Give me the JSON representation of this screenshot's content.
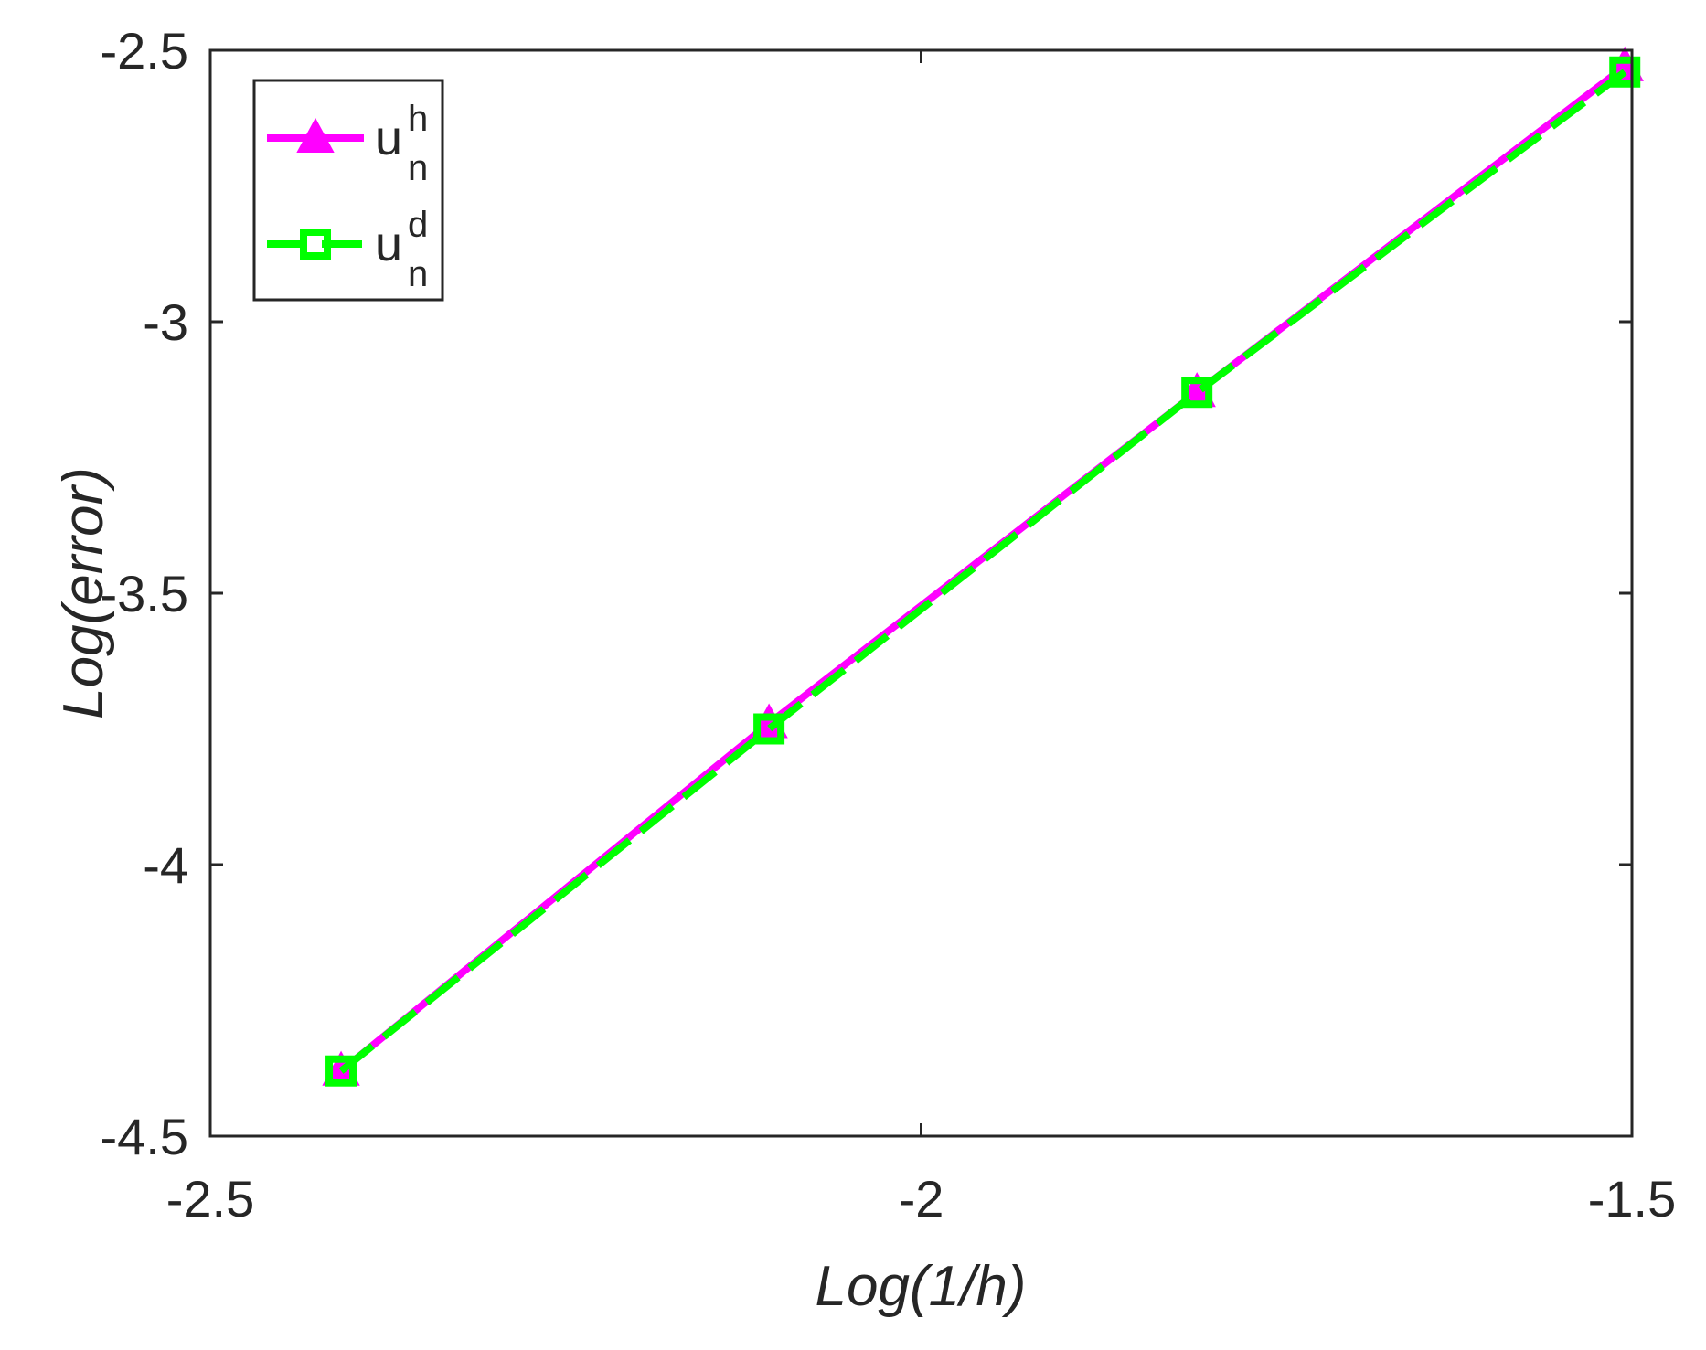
{
  "chart_data": {
    "type": "line",
    "title": "",
    "xlabel": "Log(1/h)",
    "ylabel": "Log(error)",
    "xlim": [
      -2.5,
      -1.5
    ],
    "ylim": [
      -4.5,
      -2.5
    ],
    "xticks": [
      -2.5,
      -2,
      -1.5
    ],
    "yticks": [
      -2.5,
      -3,
      -3.5,
      -4,
      -4.5
    ],
    "xtick_labels": [
      "-2.5",
      "-2",
      "-1.5"
    ],
    "ytick_labels": [
      "-2.5",
      "-3",
      "-3.5",
      "-4",
      "-4.5"
    ],
    "grid": false,
    "legend_position": "top-left",
    "x": [
      -2.408,
      -2.107,
      -1.806,
      -1.505
    ],
    "series": [
      {
        "name": "u_n^h",
        "legend_base": "u",
        "legend_sup": "h",
        "legend_sub": "n",
        "values": [
          -4.38,
          -3.74,
          -3.13,
          -2.53
        ],
        "color": "#ff00ff",
        "marker": "triangle",
        "line_style": "solid"
      },
      {
        "name": "u_n^d",
        "legend_base": "u",
        "legend_sup": "d",
        "legend_sub": "n",
        "values": [
          -4.38,
          -3.75,
          -3.13,
          -2.54
        ],
        "color": "#00ff00",
        "marker": "square",
        "line_style": "dashed"
      }
    ]
  }
}
